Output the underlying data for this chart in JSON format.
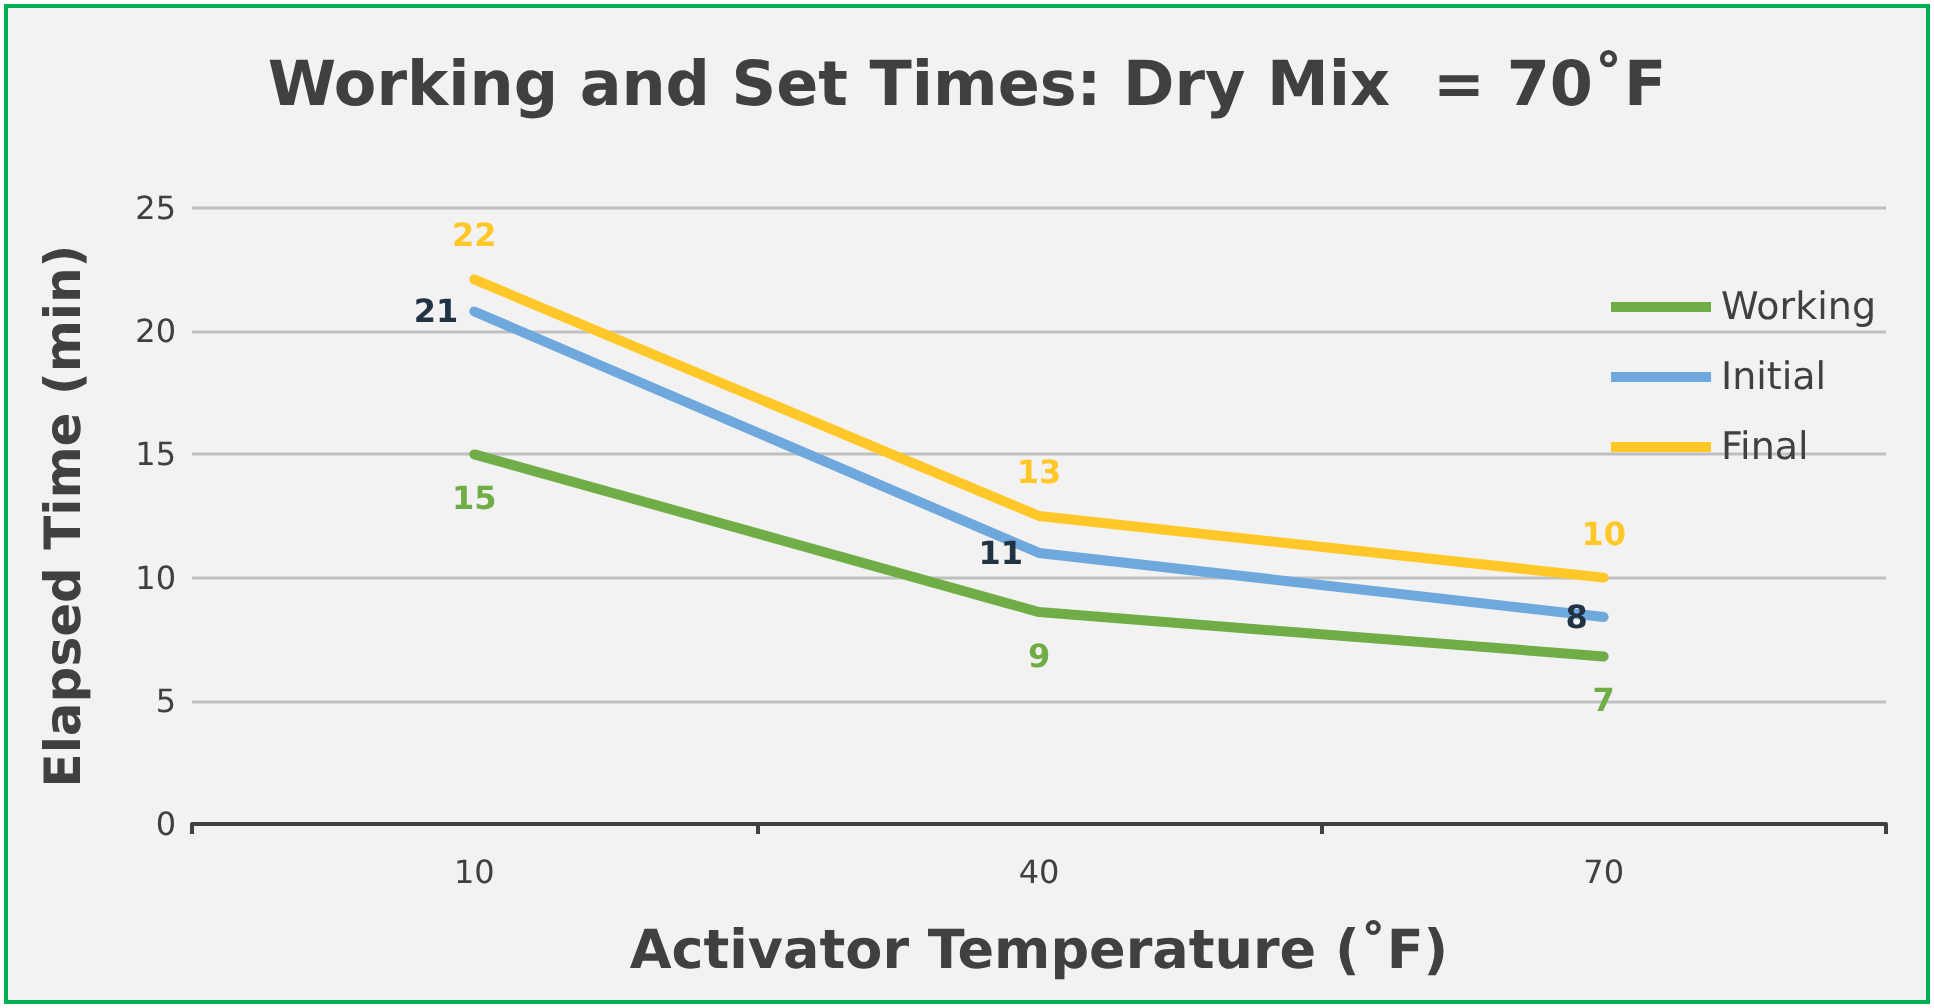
{
  "chart_data": {
    "type": "line",
    "title": "Working and Set Times: Dry Mix  = 70˚F",
    "xlabel": "Activator Temperature (˚F)",
    "ylabel": "Elapsed Time (min)",
    "categories": [
      "10",
      "40",
      "70"
    ],
    "series": [
      {
        "name": "Working",
        "color": "#70ad47",
        "values": [
          15,
          8.6,
          6.8
        ],
        "value_labels": [
          "15",
          "9",
          "7"
        ]
      },
      {
        "name": "Initial",
        "color": "#6fa8dc",
        "values": [
          20.8,
          11,
          8.4
        ],
        "value_labels": [
          "21",
          "11",
          "8"
        ]
      },
      {
        "name": "Final",
        "color": "#ffc828",
        "values": [
          22.1,
          12.5,
          10
        ],
        "value_labels": [
          "22",
          "13",
          "10"
        ]
      }
    ],
    "ylim": [
      0,
      25
    ],
    "yticks": [
      0,
      5,
      10,
      15,
      20,
      25
    ],
    "grid": "y",
    "legend": "right",
    "marker": "none",
    "line_style": "solid"
  }
}
